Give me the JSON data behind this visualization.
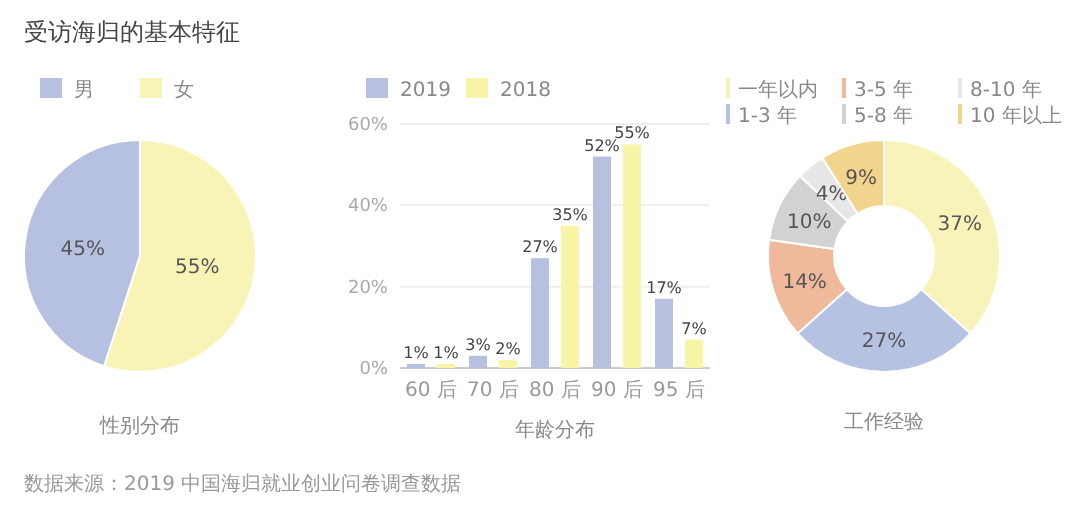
{
  "chart_data": [
    {
      "type": "pie",
      "title": "受访海归的基本特征",
      "xlabel": "性别分布",
      "categories": [
        "男",
        "女"
      ],
      "values": [
        45,
        55
      ],
      "value_labels": [
        "45%",
        "55%"
      ],
      "colors": [
        "#b6c0e0",
        "#f8f4b6"
      ],
      "legend": "top left",
      "annotations": [
        "数据来源：2019 中国海归就业创业问卷调查数据"
      ]
    },
    {
      "type": "bar",
      "xlabel": "年龄分布",
      "categories": [
        "60 后",
        "70 后",
        "80 后",
        "90 后",
        "95 后"
      ],
      "series": [
        {
          "name": "2019",
          "color": "#b7c0df",
          "values": [
            1,
            3,
            27,
            52,
            17
          ],
          "value_labels": [
            "1%",
            "3%",
            "27%",
            "52%",
            "17%"
          ]
        },
        {
          "name": "2018",
          "color": "#f8f6a6",
          "values": [
            1,
            2,
            35,
            55,
            7
          ],
          "value_labels": [
            "1%",
            "2%",
            "35%",
            "55%",
            "7%"
          ]
        }
      ],
      "ylim": [
        0,
        60
      ],
      "yticks": [
        {
          "value": 0,
          "label": "0%"
        },
        {
          "value": 20,
          "label": "20%"
        },
        {
          "value": 40,
          "label": "40%"
        },
        {
          "value": 60,
          "label": "60%"
        }
      ],
      "grid": "y",
      "legend": "top left"
    },
    {
      "type": "donut",
      "xlabel": "工作经验",
      "categories": [
        "一年以内",
        "1-3 年",
        "3-5 年",
        "5-8 年",
        "8-10 年",
        "10 年以上"
      ],
      "values": [
        37,
        27,
        14,
        10,
        4,
        9
      ],
      "value_labels": [
        "37%",
        "27%",
        "14%",
        "10%",
        "4%",
        "9%"
      ],
      "colors": [
        "#f8f3b8",
        "#b6c2e2",
        "#f0b99c",
        "#d2d2d2",
        "#e7e7e7",
        "#f3d48c"
      ],
      "legend": "top"
    }
  ]
}
